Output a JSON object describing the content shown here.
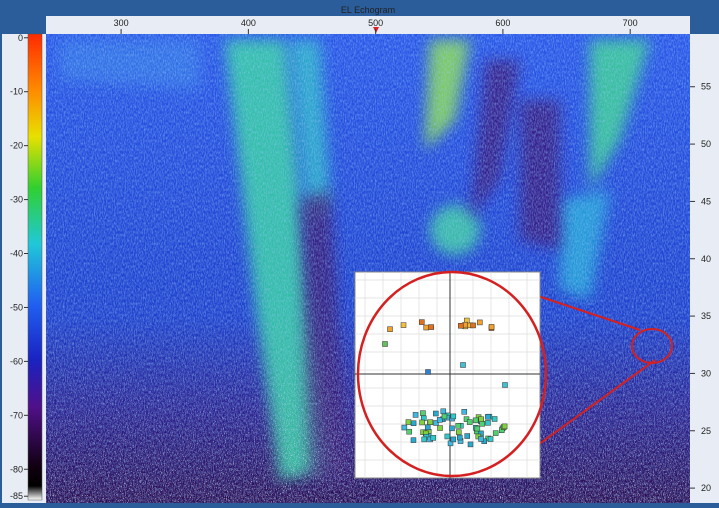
{
  "chart_data": {
    "type": "echogram",
    "title": "EL Echogram",
    "xlim": [
      241,
      747
    ],
    "xticks": [
      300,
      400,
      500,
      600,
      700
    ],
    "colorbar": {
      "lim": [
        0.7,
        -85.7
      ],
      "ticks": [
        0,
        -10,
        -20,
        -30,
        -40,
        -50,
        -60,
        -70,
        -80,
        -85
      ]
    },
    "y2lim": [
      18.7,
      59.6
    ],
    "y2ticks": [
      55,
      50,
      45,
      40,
      35,
      30,
      25,
      20
    ]
  }
}
